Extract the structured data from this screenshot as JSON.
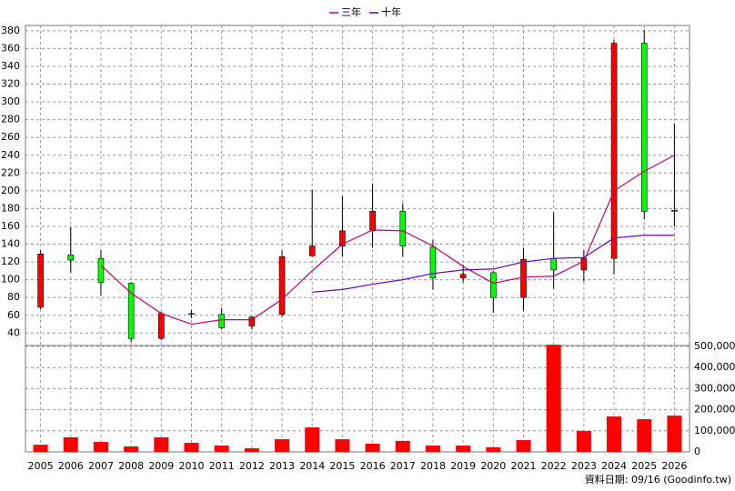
{
  "chart_data": [
    {
      "type": "candlestick",
      "categories": [
        "2005",
        "2006",
        "2007",
        "2008",
        "2009",
        "2010",
        "2011",
        "2012",
        "2013",
        "2014",
        "2015",
        "2016",
        "2017",
        "2018",
        "2019",
        "2020",
        "2021",
        "2022",
        "2023",
        "2024",
        "2025",
        "2026"
      ],
      "open": [
        69,
        128,
        124,
        96,
        34,
        62,
        61,
        48,
        61,
        127,
        138,
        155,
        177,
        137,
        102,
        108,
        80,
        124,
        111,
        124,
        366,
        178
      ],
      "high": [
        133,
        159,
        133,
        97,
        64,
        66,
        68,
        59,
        133,
        201,
        194,
        208,
        186,
        145,
        117,
        110,
        136,
        176,
        133,
        370,
        381,
        276
      ],
      "low": [
        67,
        108,
        82,
        30,
        32,
        57,
        44,
        44,
        58,
        126,
        126,
        136,
        126,
        89,
        97,
        63,
        65,
        90,
        98,
        106,
        168,
        160
      ],
      "close": [
        129,
        122,
        97,
        34,
        62,
        61,
        46,
        58,
        126,
        138,
        155,
        177,
        138,
        102,
        106,
        80,
        123,
        111,
        124,
        366,
        177,
        178
      ],
      "up_color": "#ff0000",
      "down_color": "#00ff00",
      "series": [
        {
          "name": "三年",
          "color": "#cc0066",
          "values": [
            null,
            null,
            116,
            85,
            62,
            50,
            55,
            55,
            78,
            110,
            140,
            156,
            155,
            138,
            115,
            96,
            103,
            104,
            121,
            200,
            222,
            240
          ]
        },
        {
          "name": "十年",
          "color": "#6600cc",
          "values": [
            null,
            null,
            null,
            null,
            null,
            null,
            null,
            null,
            null,
            86,
            89,
            95,
            100,
            107,
            111,
            112,
            120,
            124,
            125,
            147,
            150,
            150
          ]
        }
      ],
      "ylim": [
        26,
        386
      ],
      "yticks": [
        40,
        60,
        80,
        100,
        120,
        140,
        160,
        180,
        200,
        220,
        240,
        260,
        280,
        300,
        320,
        340,
        360,
        380
      ],
      "grid": true
    },
    {
      "type": "bar",
      "values": [
        34000,
        69000,
        47000,
        26000,
        69000,
        43000,
        30000,
        17000,
        60000,
        116000,
        60000,
        39000,
        52000,
        30000,
        30000,
        22000,
        56000,
        508000,
        99000,
        168000,
        155000,
        172000
      ],
      "color": "#ff0000",
      "ylim": [
        0,
        500000
      ],
      "yticks": [
        0,
        {
          "value": 100000,
          "label": "100,000"
        },
        {
          "value": 200000,
          "label": "200,000"
        },
        {
          "value": 300000,
          "label": "300,000"
        },
        {
          "value": 400000,
          "label": "400,000"
        },
        {
          "value": 500000,
          "label": "500,000"
        }
      ],
      "grid": true,
      "footnote": "資料日期: 09/16 (Goodinfo.tw)"
    }
  ]
}
